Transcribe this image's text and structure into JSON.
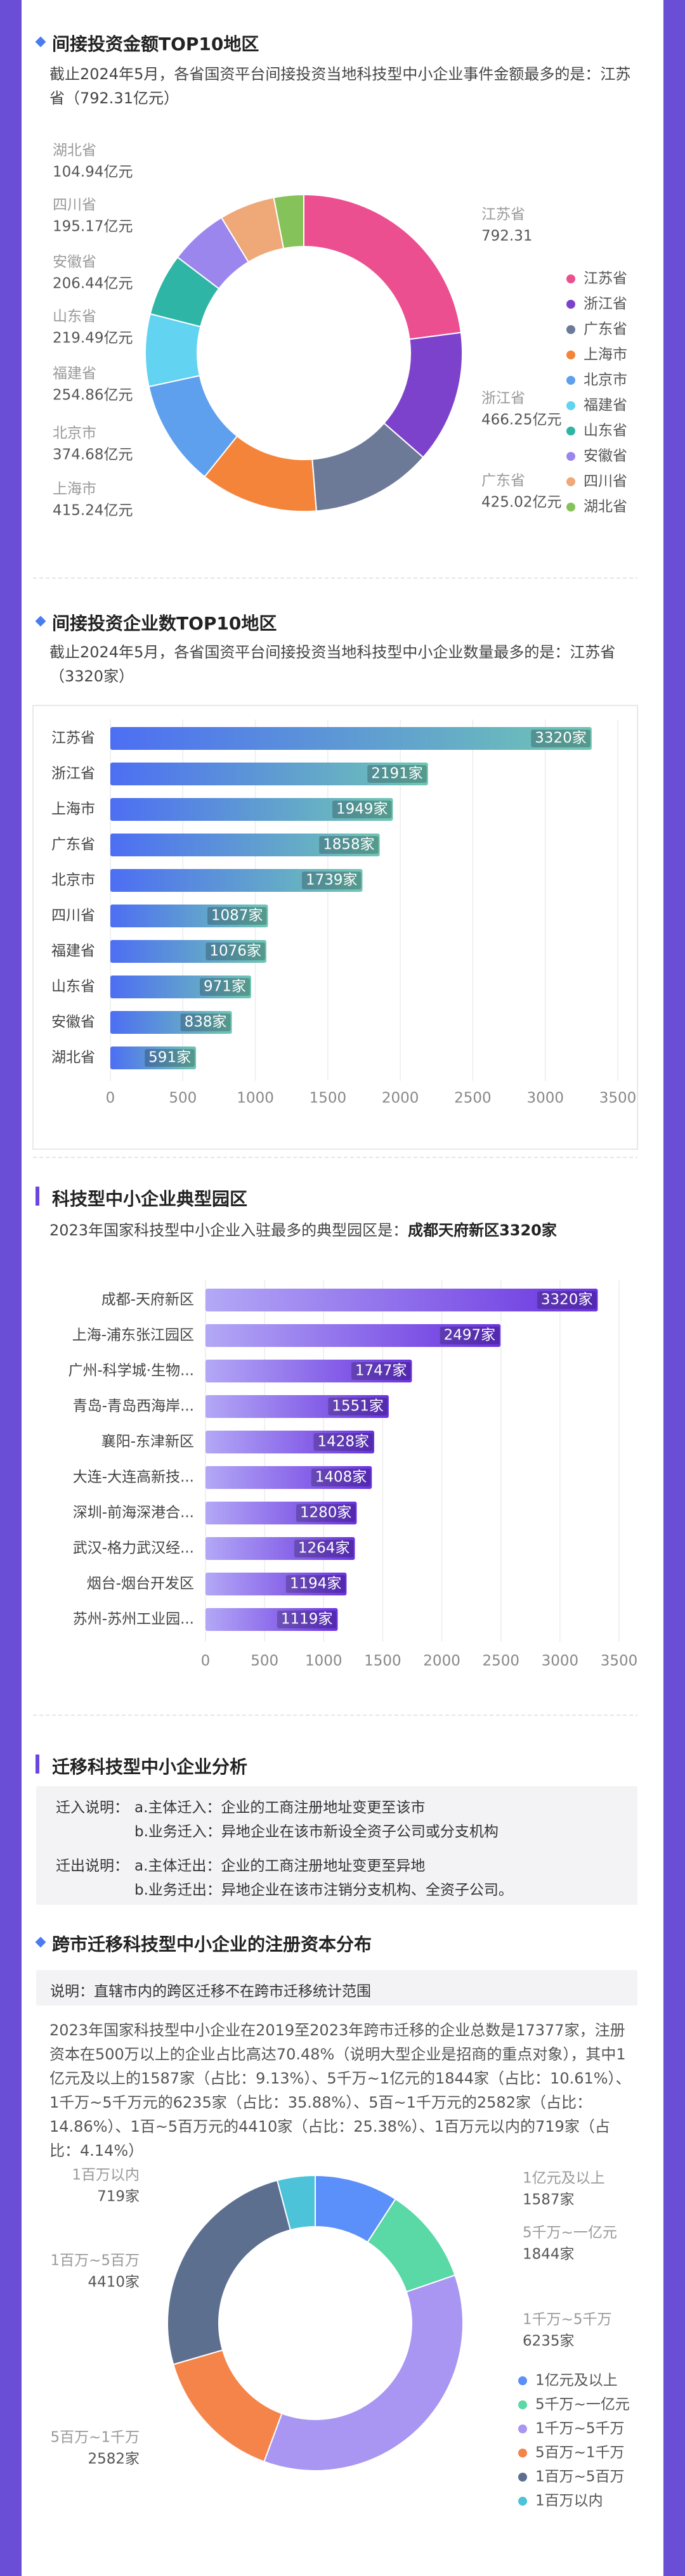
{
  "chart_data": [
    {
      "type": "donut",
      "title": "间接投资金额TOP10地区",
      "description": "截止2024年5月，各省国资平台间接投资当地科技型中小企业事件金额最多的是：江苏省（792.31亿元）",
      "categories": [
        "江苏省",
        "浙江省",
        "广东省",
        "上海市",
        "北京市",
        "福建省",
        "山东省",
        "安徽省",
        "四川省",
        "湖北省"
      ],
      "values": [
        792.31,
        466.25,
        425.02,
        415.24,
        374.68,
        254.86,
        219.49,
        206.44,
        195.17,
        104.94
      ],
      "value_labels": [
        "792.31",
        "466.25亿元",
        "425.02亿元",
        "415.24亿元",
        "374.68亿元",
        "254.86亿元",
        "219.49亿元",
        "206.44亿元",
        "195.17亿元",
        "104.94亿元"
      ],
      "colors": [
        "#ec4f8f",
        "#7d42cc",
        "#6c7a98",
        "#f5843b",
        "#5ea0ee",
        "#62d3f0",
        "#2fb5a5",
        "#9b86ee",
        "#efa878",
        "#86c25a"
      ]
    },
    {
      "type": "hbar",
      "title": "间接投资企业数TOP10地区",
      "description": "截止2024年5月，各省国资平台间接投资当地科技型中小企业数量最多的是：江苏省（3320家）",
      "categories": [
        "江苏省",
        "浙江省",
        "上海市",
        "广东省",
        "北京市",
        "四川省",
        "福建省",
        "山东省",
        "安徽省",
        "湖北省"
      ],
      "values": [
        3320,
        2191,
        1949,
        1858,
        1739,
        1087,
        1076,
        971,
        838,
        591
      ],
      "value_labels": [
        "3320家",
        "2191家",
        "1949家",
        "1858家",
        "1739家",
        "1087家",
        "1076家",
        "971家",
        "838家",
        "591家"
      ],
      "colors": [
        "#4d6ef3",
        "#6fc6b4"
      ],
      "xlim": [
        0,
        3500
      ],
      "xticks": [
        0,
        500,
        1000,
        1500,
        2000,
        2500,
        3000,
        3500
      ],
      "grid": true
    },
    {
      "type": "hbar",
      "title": "科技型中小企业典型园区",
      "description": "2023年国家科技型中小企业入驻最多的典型园区是：",
      "highlight": "成都天府新区3320家",
      "categories": [
        "成都-天府新区",
        "上海-浦东张江园区",
        "广州-科学城·生物...",
        "青岛-青岛西海岸...",
        "襄阳-东津新区",
        "大连-大连高新技...",
        "深圳-前海深港合...",
        "武汉-格力武汉经...",
        "烟台-烟台开发区",
        "苏州-苏州工业园..."
      ],
      "values": [
        3320,
        2497,
        1747,
        1551,
        1428,
        1408,
        1280,
        1264,
        1194,
        1119
      ],
      "value_labels": [
        "3320家",
        "2497家",
        "1747家",
        "1551家",
        "1428家",
        "1408家",
        "1280家",
        "1264家",
        "1194家",
        "1119家"
      ],
      "colors": [
        "#b3a8f6",
        "#6a34e0"
      ],
      "xlim": [
        0,
        3500
      ],
      "xticks": [
        0,
        500,
        1000,
        1500,
        2000,
        2500,
        3000,
        3500
      ],
      "grid": true
    },
    {
      "type": "donut",
      "title": "跨市迁移科技型中小企业的注册资本分布",
      "note": "说明：直辖市内的跨区迁移不在跨市迁移统计范围",
      "description": "2023年国家科技型中小企业在2019至2023年跨市迁移的企业总数是17377家，注册资本在500万以上的企业占比高达70.48%（说明大型企业是招商的重点对象），其中1亿元及以上的1587家（占比：9.13%）、5千万~1亿元的1844家（占比：10.61%）、1千万~5千万元的6235家（占比：35.88%）、5百~1千万元的2582家（占比：14.86%）、1百~5百万元的4410家（占比：25.38%）、1百万元以内的719家（占比：4.14%）",
      "categories": [
        "1亿元及以上",
        "5千万~一亿元",
        "1千万~5千万",
        "5百万~1千万",
        "1百万~5百万",
        "1百万以内"
      ],
      "values": [
        1587,
        1844,
        6235,
        2582,
        4410,
        719
      ],
      "value_labels": [
        "1587家",
        "1844家",
        "6235家",
        "2582家",
        "4410家",
        "719家"
      ],
      "colors": [
        "#5b8ff9",
        "#5ad8a6",
        "#a896f2",
        "#f5844a",
        "#5d6f8f",
        "#4cc3d9"
      ]
    }
  ],
  "migration": {
    "title": "迁移科技型中小企业分析",
    "groups": [
      {
        "label": "迁入说明：",
        "items": [
          "a.主体迁入：企业的工商注册地址变更至该市",
          "b.业务迁入：异地企业在该市新设全资子公司或分支机构"
        ]
      },
      {
        "label": "迁出说明：",
        "items": [
          "a.主体迁出：企业的工商注册地址变更至异地",
          "b.业务迁出：异地企业在该市注销分支机构、全资子公司。"
        ]
      }
    ]
  }
}
